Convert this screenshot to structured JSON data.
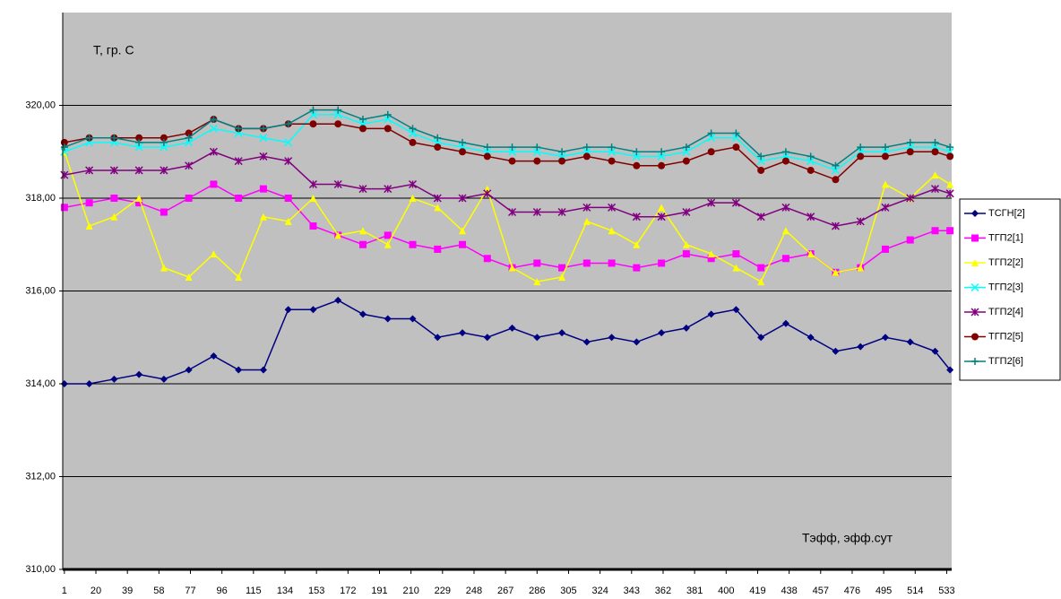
{
  "chart_data": {
    "type": "line",
    "y_label": "T, гр. С",
    "x_label": "Tэфф, эфф.сут",
    "x": [
      1,
      16,
      31,
      46,
      61,
      76,
      91,
      106,
      121,
      136,
      151,
      166,
      181,
      196,
      211,
      226,
      241,
      256,
      271,
      286,
      301,
      316,
      331,
      346,
      361,
      376,
      391,
      406,
      421,
      436,
      451,
      466,
      481,
      496,
      511,
      526,
      535
    ],
    "xlim": [
      0,
      536
    ],
    "xticks": [
      1,
      20,
      39,
      58,
      77,
      96,
      115,
      134,
      153,
      172,
      191,
      210,
      229,
      248,
      267,
      286,
      305,
      324,
      343,
      362,
      381,
      400,
      419,
      438,
      457,
      476,
      495,
      514,
      533
    ],
    "ylim": [
      310,
      322
    ],
    "yticks": [
      {
        "value": 310,
        "label": "310,00"
      },
      {
        "value": 312,
        "label": "312,00"
      },
      {
        "value": 314,
        "label": "314,00"
      },
      {
        "value": 316,
        "label": "316,00"
      },
      {
        "value": 318,
        "label": "318,00"
      },
      {
        "value": 320,
        "label": "320,00"
      }
    ],
    "grid": true,
    "legend": "right",
    "series": [
      {
        "name": "ТСГН[2]",
        "color": "#000080",
        "marker": "diamond",
        "values": [
          314.0,
          314.0,
          314.1,
          314.2,
          314.1,
          314.3,
          314.6,
          314.3,
          314.3,
          315.6,
          315.6,
          315.8,
          315.5,
          315.4,
          315.4,
          315.0,
          315.1,
          315.0,
          315.2,
          315.0,
          315.1,
          314.9,
          315.0,
          314.9,
          315.1,
          315.2,
          315.5,
          315.6,
          315.0,
          315.3,
          315.0,
          314.7,
          314.8,
          315.0,
          314.9,
          314.7,
          314.3
        ]
      },
      {
        "name": "ТГП2[1]",
        "color": "#ff00ff",
        "marker": "square",
        "values": [
          317.8,
          317.9,
          318.0,
          317.9,
          317.7,
          318.0,
          318.3,
          318.0,
          318.2,
          318.0,
          317.4,
          317.2,
          317.0,
          317.2,
          317.0,
          316.9,
          317.0,
          316.7,
          316.5,
          316.6,
          316.5,
          316.6,
          316.6,
          316.5,
          316.6,
          316.8,
          316.7,
          316.8,
          316.5,
          316.7,
          316.8,
          316.4,
          316.5,
          316.9,
          317.1,
          317.3,
          317.3
        ]
      },
      {
        "name": "ТГП2[2]",
        "color": "#ffff00",
        "marker": "triangle",
        "values": [
          319.0,
          317.4,
          317.6,
          318.0,
          316.5,
          316.3,
          316.8,
          316.3,
          317.6,
          317.5,
          318.0,
          317.2,
          317.3,
          317.0,
          318.0,
          317.8,
          317.3,
          318.2,
          316.5,
          316.2,
          316.3,
          317.5,
          317.3,
          317.0,
          317.8,
          317.0,
          316.8,
          316.5,
          316.2,
          317.3,
          316.8,
          316.4,
          316.5,
          318.3,
          318.0,
          318.5,
          318.3
        ]
      },
      {
        "name": "ТГП2[3]",
        "color": "#00ffff",
        "marker": "x",
        "values": [
          319.0,
          319.2,
          319.2,
          319.1,
          319.1,
          319.2,
          319.5,
          319.4,
          319.3,
          319.2,
          319.8,
          319.8,
          319.6,
          319.7,
          319.4,
          319.2,
          319.1,
          319.0,
          319.0,
          319.0,
          318.9,
          319.0,
          319.0,
          318.9,
          318.9,
          319.0,
          319.3,
          319.3,
          318.8,
          318.9,
          318.8,
          318.6,
          319.0,
          319.0,
          319.1,
          319.1,
          319.0
        ]
      },
      {
        "name": "ТГП2[4]",
        "color": "#800080",
        "marker": "star",
        "values": [
          318.5,
          318.6,
          318.6,
          318.6,
          318.6,
          318.7,
          319.0,
          318.8,
          318.9,
          318.8,
          318.3,
          318.3,
          318.2,
          318.2,
          318.3,
          318.0,
          318.0,
          318.1,
          317.7,
          317.7,
          317.7,
          317.8,
          317.8,
          317.6,
          317.6,
          317.7,
          317.9,
          317.9,
          317.6,
          317.8,
          317.6,
          317.4,
          317.5,
          317.8,
          318.0,
          318.2,
          318.1
        ]
      },
      {
        "name": "ТГП2[5]",
        "color": "#800000",
        "marker": "circle",
        "values": [
          319.2,
          319.3,
          319.3,
          319.3,
          319.3,
          319.4,
          319.7,
          319.5,
          319.5,
          319.6,
          319.6,
          319.6,
          319.5,
          319.5,
          319.2,
          319.1,
          319.0,
          318.9,
          318.8,
          318.8,
          318.8,
          318.9,
          318.8,
          318.7,
          318.7,
          318.8,
          319.0,
          319.1,
          318.6,
          318.8,
          318.6,
          318.4,
          318.9,
          318.9,
          319.0,
          319.0,
          318.9
        ]
      },
      {
        "name": "ТГП2[6]",
        "color": "#008080",
        "marker": "plus",
        "values": [
          319.1,
          319.3,
          319.3,
          319.2,
          319.2,
          319.3,
          319.7,
          319.5,
          319.5,
          319.6,
          319.9,
          319.9,
          319.7,
          319.8,
          319.5,
          319.3,
          319.2,
          319.1,
          319.1,
          319.1,
          319.0,
          319.1,
          319.1,
          319.0,
          319.0,
          319.1,
          319.4,
          319.4,
          318.9,
          319.0,
          318.9,
          318.7,
          319.1,
          319.1,
          319.2,
          319.2,
          319.1
        ]
      }
    ]
  }
}
